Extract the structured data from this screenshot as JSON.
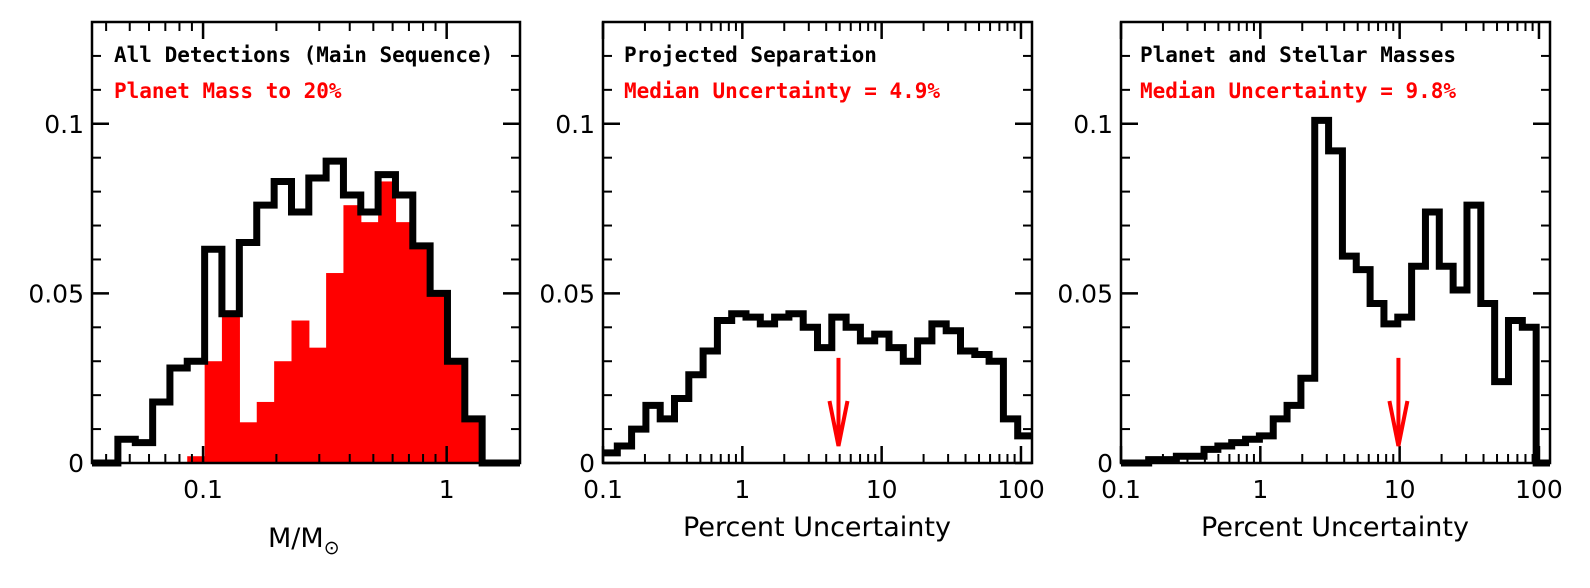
{
  "chart_data": [
    {
      "type": "histogram",
      "xscale": "log",
      "xlim": [
        0.035,
        2.0
      ],
      "ylim": [
        0,
        0.13
      ],
      "xlabel_main": "M/M",
      "xlabel_sub": "⊙",
      "xticks": [
        {
          "v": 0.1,
          "label": "0.1"
        },
        {
          "v": 1,
          "label": "1"
        }
      ],
      "yticks": [
        {
          "v": 0,
          "label": "0"
        },
        {
          "v": 0.05,
          "label": "0.05"
        },
        {
          "v": 0.1,
          "label": "0.1"
        }
      ],
      "title": "All Detections (Main Sequence)",
      "subtitle": "Planet Mass to 20%",
      "title_color": "#000000",
      "subtitle_color": "#ff0000",
      "series": [
        {
          "name": "All Detections (Main Sequence)",
          "style": "step",
          "color": "#000000",
          "edges": [
            0.035,
            0.0447,
            0.0527,
            0.0621,
            0.0731,
            0.0861,
            0.1015,
            0.1195,
            0.1409,
            0.1661,
            0.1958,
            0.2307,
            0.2717,
            0.32,
            0.3769,
            0.444,
            0.5231,
            0.6163,
            0.726,
            0.8552,
            1.0076,
            1.187,
            1.3984,
            1.6473,
            2.0
          ],
          "values": [
            0.0,
            0.007,
            0.006,
            0.018,
            0.028,
            0.03,
            0.063,
            0.044,
            0.065,
            0.076,
            0.083,
            0.074,
            0.084,
            0.089,
            0.079,
            0.074,
            0.085,
            0.079,
            0.064,
            0.05,
            0.03,
            0.013,
            0.0,
            0.0
          ]
        },
        {
          "name": "Planet Mass to 20%",
          "style": "fill",
          "color": "#ff0000",
          "edges": [
            0.0861,
            0.1015,
            0.1195,
            0.1409,
            0.1661,
            0.1958,
            0.2307,
            0.2717,
            0.32,
            0.3769,
            0.444,
            0.5231,
            0.6163,
            0.726,
            0.8552,
            1.0076,
            1.187,
            1.3984
          ],
          "values": [
            0.002,
            0.03,
            0.045,
            0.012,
            0.018,
            0.03,
            0.042,
            0.034,
            0.056,
            0.076,
            0.071,
            0.083,
            0.071,
            0.064,
            0.05,
            0.03,
            0.013
          ]
        }
      ],
      "arrow": null
    },
    {
      "type": "histogram",
      "xscale": "log",
      "xlim": [
        0.1,
        120
      ],
      "ylim": [
        0,
        0.13
      ],
      "xlabel_main": "Percent Uncertainty",
      "xlabel_sub": "",
      "xticks": [
        {
          "v": 0.1,
          "label": "0.1"
        },
        {
          "v": 1,
          "label": "1"
        },
        {
          "v": 10,
          "label": "10"
        },
        {
          "v": 100,
          "label": "100"
        }
      ],
      "yticks": [
        {
          "v": 0,
          "label": "0"
        },
        {
          "v": 0.05,
          "label": "0.05"
        },
        {
          "v": 0.1,
          "label": "0.1"
        }
      ],
      "title": "Projected Separation",
      "subtitle": "Median Uncertainty = 4.9%",
      "title_color": "#000000",
      "subtitle_color": "#ff0000",
      "series": [
        {
          "name": "Projected Separation",
          "style": "step",
          "color": "#000000",
          "values": [
            0.003,
            0.005,
            0.01,
            0.017,
            0.013,
            0.019,
            0.026,
            0.033,
            0.042,
            0.044,
            0.043,
            0.041,
            0.043,
            0.044,
            0.04,
            0.034,
            0.043,
            0.04,
            0.036,
            0.038,
            0.034,
            0.03,
            0.036,
            0.041,
            0.039,
            0.033,
            0.032,
            0.03,
            0.013,
            0.008
          ]
        }
      ],
      "arrow": {
        "value": 4.9,
        "y_from": 0.031,
        "y_to": 0.005,
        "color": "#ff0000"
      }
    },
    {
      "type": "histogram",
      "xscale": "log",
      "xlim": [
        0.1,
        120
      ],
      "ylim": [
        0,
        0.13
      ],
      "xlabel_main": "Percent Uncertainty",
      "xlabel_sub": "",
      "xticks": [
        {
          "v": 0.1,
          "label": "0.1"
        },
        {
          "v": 1,
          "label": "1"
        },
        {
          "v": 10,
          "label": "10"
        },
        {
          "v": 100,
          "label": "100"
        }
      ],
      "yticks": [
        {
          "v": 0,
          "label": "0"
        },
        {
          "v": 0.05,
          "label": "0.05"
        },
        {
          "v": 0.1,
          "label": "0.1"
        }
      ],
      "title": "Planet and Stellar Masses",
      "subtitle": "Median Uncertainty = 9.8%",
      "title_color": "#000000",
      "subtitle_color": "#ff0000",
      "series": [
        {
          "name": "Planet and Stellar Masses",
          "style": "step",
          "color": "#000000",
          "values": [
            0.0,
            0.0,
            0.001,
            0.001,
            0.002,
            0.002,
            0.004,
            0.005,
            0.006,
            0.007,
            0.008,
            0.013,
            0.017,
            0.025,
            0.101,
            0.092,
            0.061,
            0.057,
            0.047,
            0.041,
            0.043,
            0.058,
            0.074,
            0.058,
            0.051,
            0.076,
            0.047,
            0.024,
            0.042,
            0.04,
            0.0
          ]
        }
      ],
      "arrow": {
        "value": 9.8,
        "y_from": 0.031,
        "y_to": 0.005,
        "color": "#ff0000"
      }
    }
  ]
}
